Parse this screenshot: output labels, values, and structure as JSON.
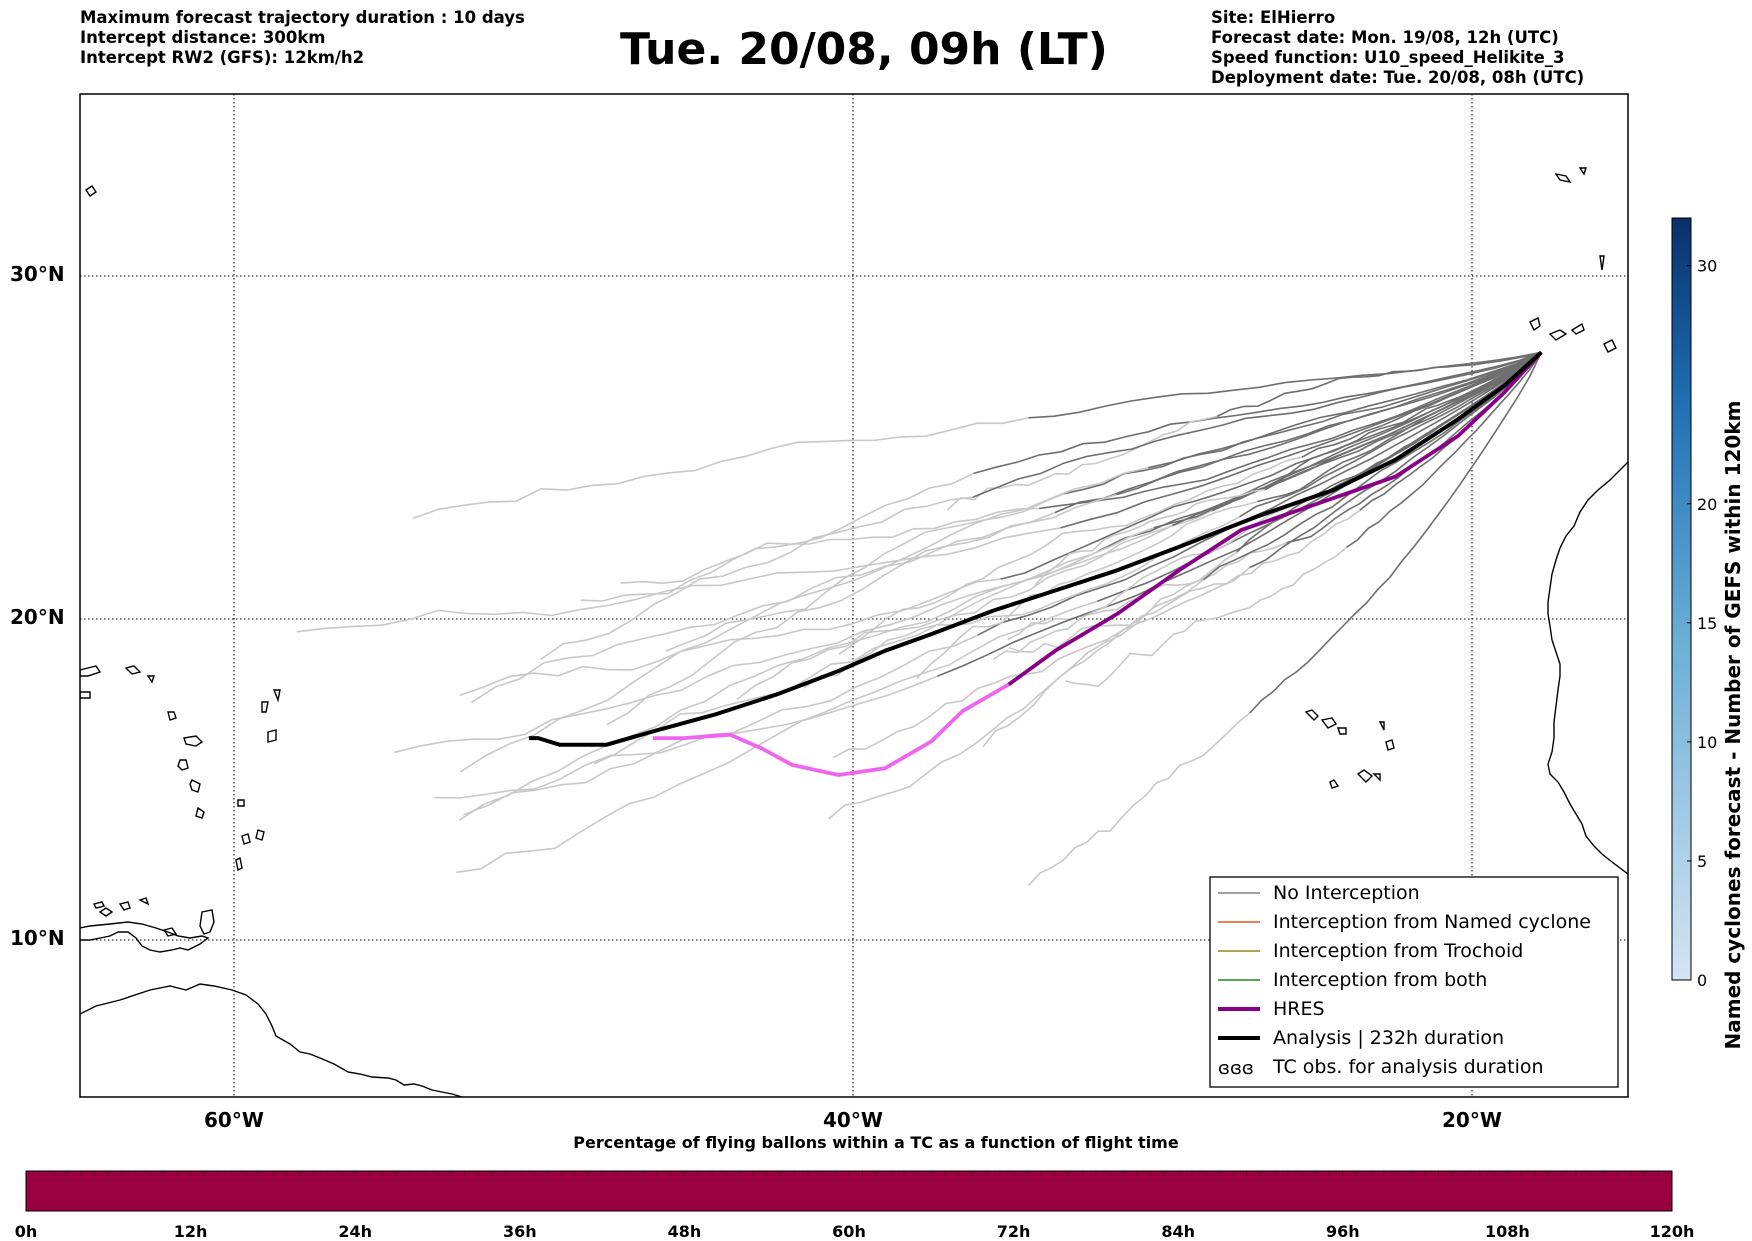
{
  "header": {
    "left_lines": [
      "Maximum forecast trajectory duration : 10 days",
      "Intercept distance: 300km",
      "Intercept RW2 (GFS):  12km/h2"
    ],
    "title": "Tue. 20/08, 09h (LT)",
    "right_lines": [
      "Site: ElHierro",
      "Forecast date: Mon. 19/08, 12h (UTC)",
      "Speed function: U10_speed_Helikite_3",
      "Deployment date: Tue. 20/08, 08h (UTC)"
    ]
  },
  "map": {
    "lat_labels": [
      "30°N",
      "20°N",
      "10°N"
    ],
    "lon_labels": [
      "60°W",
      "40°W",
      "20°W"
    ],
    "extent": {
      "lon_min": -65,
      "lon_max": -15,
      "lat_min": 5.4,
      "lat_max": 35.3
    },
    "grid": "dotted",
    "colors": {
      "ensemble_near": "#6e6e6e",
      "ensemble_far": "#c8c8c8",
      "hres_near": "#880088",
      "hres_far": "#ee66ee",
      "analysis": "#000000"
    },
    "analysis_track": [
      [
        -17.8,
        27.6
      ],
      [
        -19.0,
        26.6
      ],
      [
        -20.5,
        25.6
      ],
      [
        -22.5,
        24.4
      ],
      [
        -24.5,
        23.5
      ],
      [
        -27.0,
        22.7
      ],
      [
        -29.5,
        21.8
      ],
      [
        -31.5,
        21.1
      ],
      [
        -33.5,
        20.5
      ],
      [
        -35.5,
        19.9
      ],
      [
        -37.5,
        19.2
      ],
      [
        -39.0,
        18.7
      ],
      [
        -40.5,
        18.1
      ],
      [
        -42.5,
        17.4
      ],
      [
        -44.5,
        16.8
      ],
      [
        -46.5,
        16.3
      ],
      [
        -48.0,
        15.9
      ],
      [
        -49.5,
        15.9
      ],
      [
        -50.2,
        16.1
      ],
      [
        -50.5,
        16.1
      ]
    ],
    "analysis_split": 0.42,
    "hres_track": [
      [
        -17.8,
        27.6
      ],
      [
        -19.0,
        26.4
      ],
      [
        -20.5,
        25.1
      ],
      [
        -22.5,
        23.9
      ],
      [
        -25.0,
        23.1
      ],
      [
        -27.5,
        22.3
      ],
      [
        -29.5,
        21.1
      ],
      [
        -31.5,
        19.8
      ],
      [
        -33.5,
        18.7
      ],
      [
        -35.0,
        17.7
      ],
      [
        -36.5,
        16.9
      ],
      [
        -37.5,
        16.0
      ],
      [
        -39.0,
        15.2
      ],
      [
        -40.5,
        15.0
      ],
      [
        -42.0,
        15.3
      ],
      [
        -43.0,
        15.8
      ],
      [
        -44.0,
        16.2
      ],
      [
        -45.5,
        16.1
      ],
      [
        -46.5,
        16.1
      ]
    ],
    "hres_split": 0.48
  },
  "legend": {
    "items": [
      {
        "label": "No Interception",
        "color": "#808080",
        "width": 1.5,
        "kind": "line"
      },
      {
        "label": "Interception from Named cyclone",
        "color": "#e8541c",
        "width": 1.5,
        "kind": "line"
      },
      {
        "label": "Interception from Trochoid",
        "color": "#8a8a1e",
        "width": 1.5,
        "kind": "line"
      },
      {
        "label": "Interception from both",
        "color": "#1e8a1e",
        "width": 1.5,
        "kind": "line"
      },
      {
        "label": "HRES",
        "color": "#880088",
        "width": 4,
        "kind": "line"
      },
      {
        "label": "Analysis | 232h duration",
        "color": "#000000",
        "width": 4,
        "kind": "line"
      },
      {
        "label": "TC obs. for analysis duration",
        "color": "#000000",
        "width": 1,
        "kind": "symbol"
      }
    ]
  },
  "colorbar_right": {
    "label": "Named cyclones forecast - Number of GEFS within 120km",
    "ticks": [
      {
        "value": 0,
        "label": "0"
      },
      {
        "value": 5,
        "label": "5"
      },
      {
        "value": 10,
        "label": "10"
      },
      {
        "value": 15,
        "label": "15"
      },
      {
        "value": 20,
        "label": "20"
      },
      {
        "value": 30,
        "label": "30"
      }
    ],
    "max": 32,
    "color_low": "#d5e4f3",
    "color_high": "#08306b"
  },
  "colorbar_bottom": {
    "title": "Percentage of flying ballons within a TC as a function of flight time",
    "ticks": [
      "0h",
      "12h",
      "24h",
      "36h",
      "48h",
      "60h",
      "72h",
      "84h",
      "96h",
      "108h",
      "120h"
    ],
    "color": "#9a0040"
  }
}
